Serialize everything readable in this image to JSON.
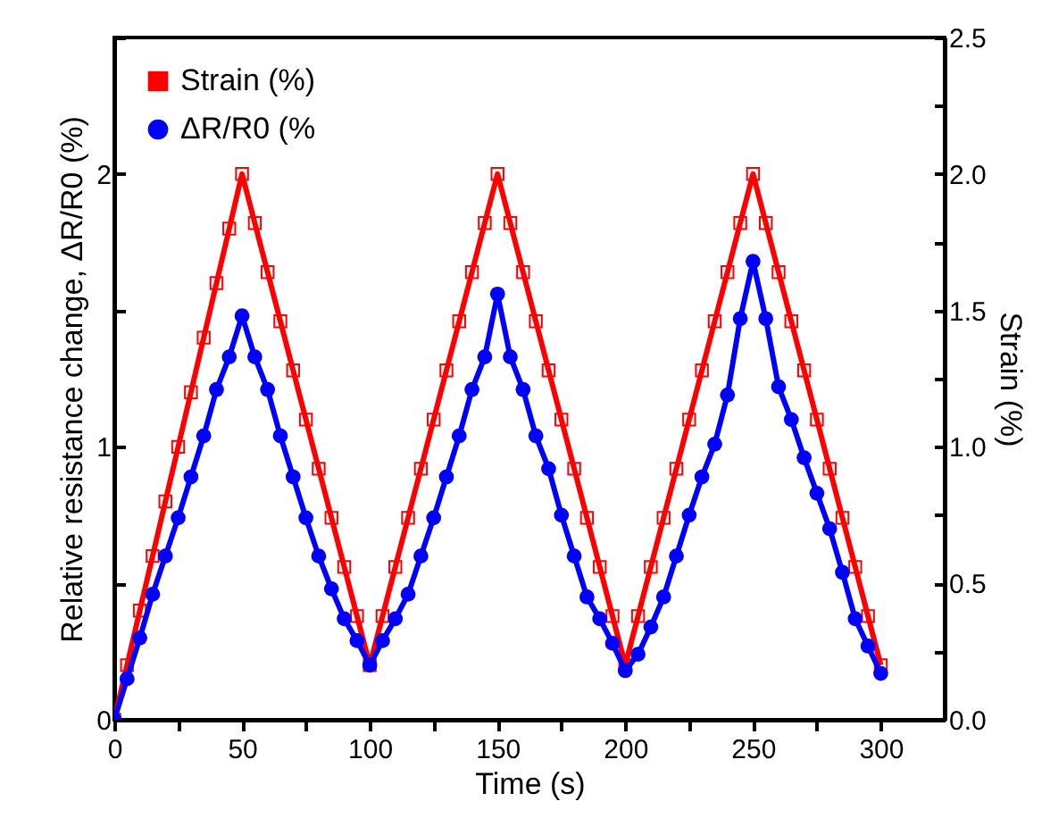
{
  "chart_data": {
    "type": "line",
    "xlabel": "Time (s)",
    "ylabel": "Relative resistance change, ΔR/R0 (%)",
    "y2label": "Strain (%)",
    "x": [
      0,
      5,
      10,
      15,
      20,
      25,
      30,
      35,
      40,
      45,
      50,
      55,
      60,
      65,
      70,
      75,
      80,
      85,
      90,
      95,
      100,
      105,
      110,
      115,
      120,
      125,
      130,
      135,
      140,
      145,
      150,
      155,
      160,
      165,
      170,
      175,
      180,
      185,
      190,
      195,
      200,
      205,
      210,
      215,
      220,
      225,
      230,
      235,
      240,
      245,
      250,
      255,
      260,
      265,
      270,
      275,
      280,
      285,
      290,
      295,
      300
    ],
    "series": [
      {
        "name": "Strain (%)",
        "color": "#ff0000",
        "marker": "square",
        "axis": "y2",
        "values": [
          0,
          0.2,
          0.4,
          0.6,
          0.8,
          1.0,
          1.2,
          1.4,
          1.6,
          1.8,
          2.0,
          1.82,
          1.64,
          1.46,
          1.28,
          1.1,
          0.92,
          0.74,
          0.56,
          0.38,
          0.2,
          0.38,
          0.56,
          0.74,
          0.92,
          1.1,
          1.28,
          1.46,
          1.64,
          1.82,
          2.0,
          1.82,
          1.64,
          1.46,
          1.28,
          1.1,
          0.92,
          0.74,
          0.56,
          0.38,
          0.2,
          0.38,
          0.56,
          0.74,
          0.92,
          1.1,
          1.28,
          1.46,
          1.64,
          1.82,
          2.0,
          1.82,
          1.64,
          1.46,
          1.28,
          1.1,
          0.92,
          0.74,
          0.56,
          0.38,
          0.2
        ]
      },
      {
        "name": "ΔR/R0 (%",
        "color": "#0000ff",
        "marker": "circle",
        "values": [
          0,
          0.15,
          0.3,
          0.46,
          0.6,
          0.74,
          0.89,
          1.04,
          1.21,
          1.33,
          1.48,
          1.33,
          1.21,
          1.04,
          0.89,
          0.74,
          0.6,
          0.48,
          0.37,
          0.29,
          0.2,
          0.29,
          0.37,
          0.46,
          0.6,
          0.74,
          0.89,
          1.04,
          1.21,
          1.33,
          1.56,
          1.33,
          1.21,
          1.04,
          0.92,
          0.75,
          0.6,
          0.45,
          0.37,
          0.28,
          0.18,
          0.24,
          0.34,
          0.45,
          0.6,
          0.75,
          0.89,
          1.01,
          1.19,
          1.47,
          1.68,
          1.47,
          1.22,
          1.1,
          0.96,
          0.83,
          0.7,
          0.54,
          0.37,
          0.27,
          0.17
        ]
      }
    ],
    "xlim": [
      0,
      325
    ],
    "xticks": [
      0,
      {
        "value": 25,
        "label": null
      },
      50,
      {
        "value": 75,
        "label": null
      },
      100,
      {
        "value": 125,
        "label": null
      },
      150,
      {
        "value": 175,
        "label": null
      },
      200,
      {
        "value": 225,
        "label": null
      },
      250,
      {
        "value": 275,
        "label": null
      },
      300
    ],
    "ylim": [
      0,
      2.5
    ],
    "yticks": [
      0,
      {
        "value": 0.5,
        "label": null
      },
      1,
      {
        "value": 1.5,
        "label": null
      },
      2,
      {
        "value": 2.5,
        "label": null
      }
    ],
    "y2lim": [
      0,
      2.5
    ],
    "y2ticks": [
      {
        "value": 0,
        "label": "0.0"
      },
      {
        "value": 0.25,
        "label": null
      },
      {
        "value": 0.5,
        "label": "0.5"
      },
      {
        "value": 0.75,
        "label": null
      },
      {
        "value": 1,
        "label": "1.0"
      },
      {
        "value": 1.25,
        "label": null
      },
      {
        "value": 1.5,
        "label": "1.5"
      },
      {
        "value": 1.75,
        "label": null
      },
      {
        "value": 2,
        "label": "2.0"
      },
      {
        "value": 2.25,
        "label": null
      },
      {
        "value": 2.5,
        "label": "2.5"
      }
    ],
    "legend": "top left",
    "grid": false,
    "line_style": "solid"
  }
}
